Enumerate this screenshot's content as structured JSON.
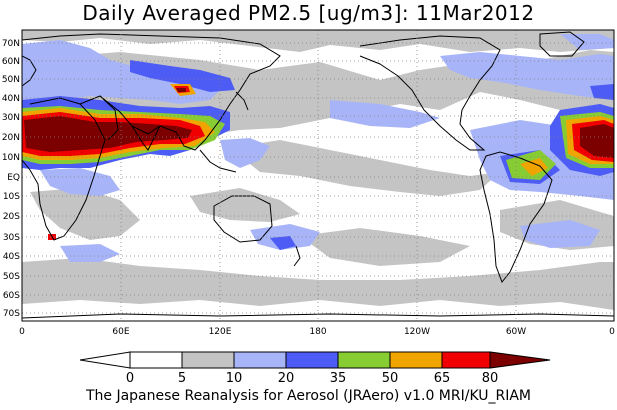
{
  "title": "Daily Averaged PM2.5 [ug/m3]: 11Mar2012",
  "footer": "The Japanese Reanalysis for Aerosol (JRAero) v1.0 MRI/KU_RIAM",
  "lat_labels": [
    "70N",
    "60N",
    "50N",
    "40N",
    "30N",
    "20N",
    "10N",
    "EQ",
    "10S",
    "20S",
    "30S",
    "40S",
    "50S",
    "60S",
    "70S"
  ],
  "lon_labels": [
    "0",
    "60E",
    "120E",
    "180",
    "120W",
    "60W",
    "0"
  ],
  "colorbar": {
    "levels": [
      "0",
      "5",
      "10",
      "20",
      "35",
      "50",
      "65",
      "80"
    ],
    "colors": [
      "#ffffff",
      "#ffffff",
      "#c4c4c4",
      "#a8b4f8",
      "#4c5cf4",
      "#88cc34",
      "#f0a400",
      "#f00000",
      "#7c0000"
    ]
  },
  "colors": {
    "gray": "#c4c4c4",
    "light_blue": "#a8b4f8",
    "blue": "#4c5cf4",
    "green": "#88cc34",
    "orange": "#f0a400",
    "red": "#f00000",
    "dark_red": "#7c0000"
  }
}
